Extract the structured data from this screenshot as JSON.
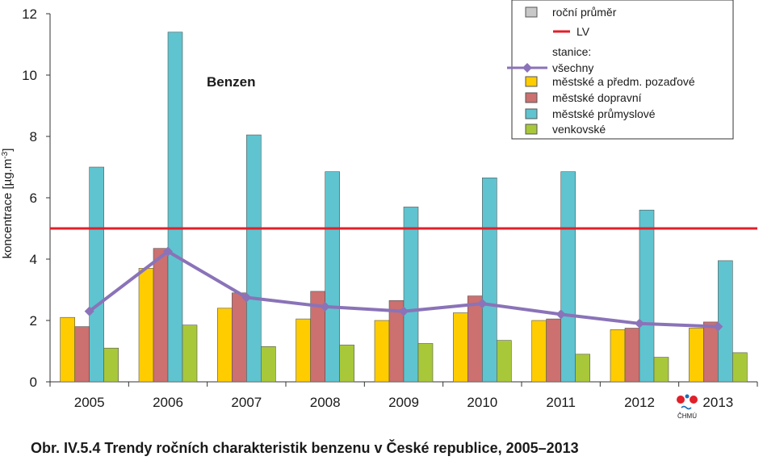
{
  "chart_data": {
    "type": "bar",
    "annotation": "Benzen",
    "ylabel": "koncentrace [µg.m",
    "ylabel_sup": "-3",
    "ylabel_tail": "]",
    "ylim": [
      0,
      12
    ],
    "yticks": [
      "0",
      "2",
      "4",
      "6",
      "8",
      "10",
      "12"
    ],
    "categories": [
      "2005",
      "2006",
      "2007",
      "2008",
      "2009",
      "2010",
      "2011",
      "2012",
      "2013"
    ],
    "series": [
      {
        "name": "městské a předm. pozaďové",
        "color": "#ffcc00",
        "values": [
          2.1,
          3.7,
          2.4,
          2.05,
          2.0,
          2.25,
          2.0,
          1.7,
          1.75
        ]
      },
      {
        "name": "městské dopravní",
        "color": "#cc7070",
        "values": [
          1.8,
          4.35,
          2.9,
          2.95,
          2.65,
          2.8,
          2.05,
          1.75,
          1.95
        ]
      },
      {
        "name": "městské průmyslové",
        "color": "#5fc4cf",
        "values": [
          7.0,
          11.4,
          8.05,
          6.85,
          5.7,
          6.65,
          6.85,
          5.6,
          3.95
        ]
      },
      {
        "name": "venkovské",
        "color": "#a8c83a",
        "values": [
          1.1,
          1.85,
          1.15,
          1.2,
          1.25,
          1.35,
          0.9,
          0.8,
          0.95
        ]
      }
    ],
    "line_series": {
      "name": "všechny",
      "color": "#8a73b8",
      "values": [
        2.3,
        4.25,
        2.75,
        2.45,
        2.3,
        2.55,
        2.2,
        1.9,
        1.8
      ]
    },
    "lv": {
      "name": "LV",
      "value": 5,
      "color": "#e0202a"
    },
    "legend": {
      "annual_mean": "roční průměr",
      "lv": "LV",
      "stations_heading": "stanice:"
    },
    "legend_placement": "top-right",
    "grid": false
  },
  "logo": {
    "text": "ČHMÚ"
  },
  "caption": "Obr. IV.5.4  Trendy ročních charakteristik benzenu v České republice, 2005–2013"
}
